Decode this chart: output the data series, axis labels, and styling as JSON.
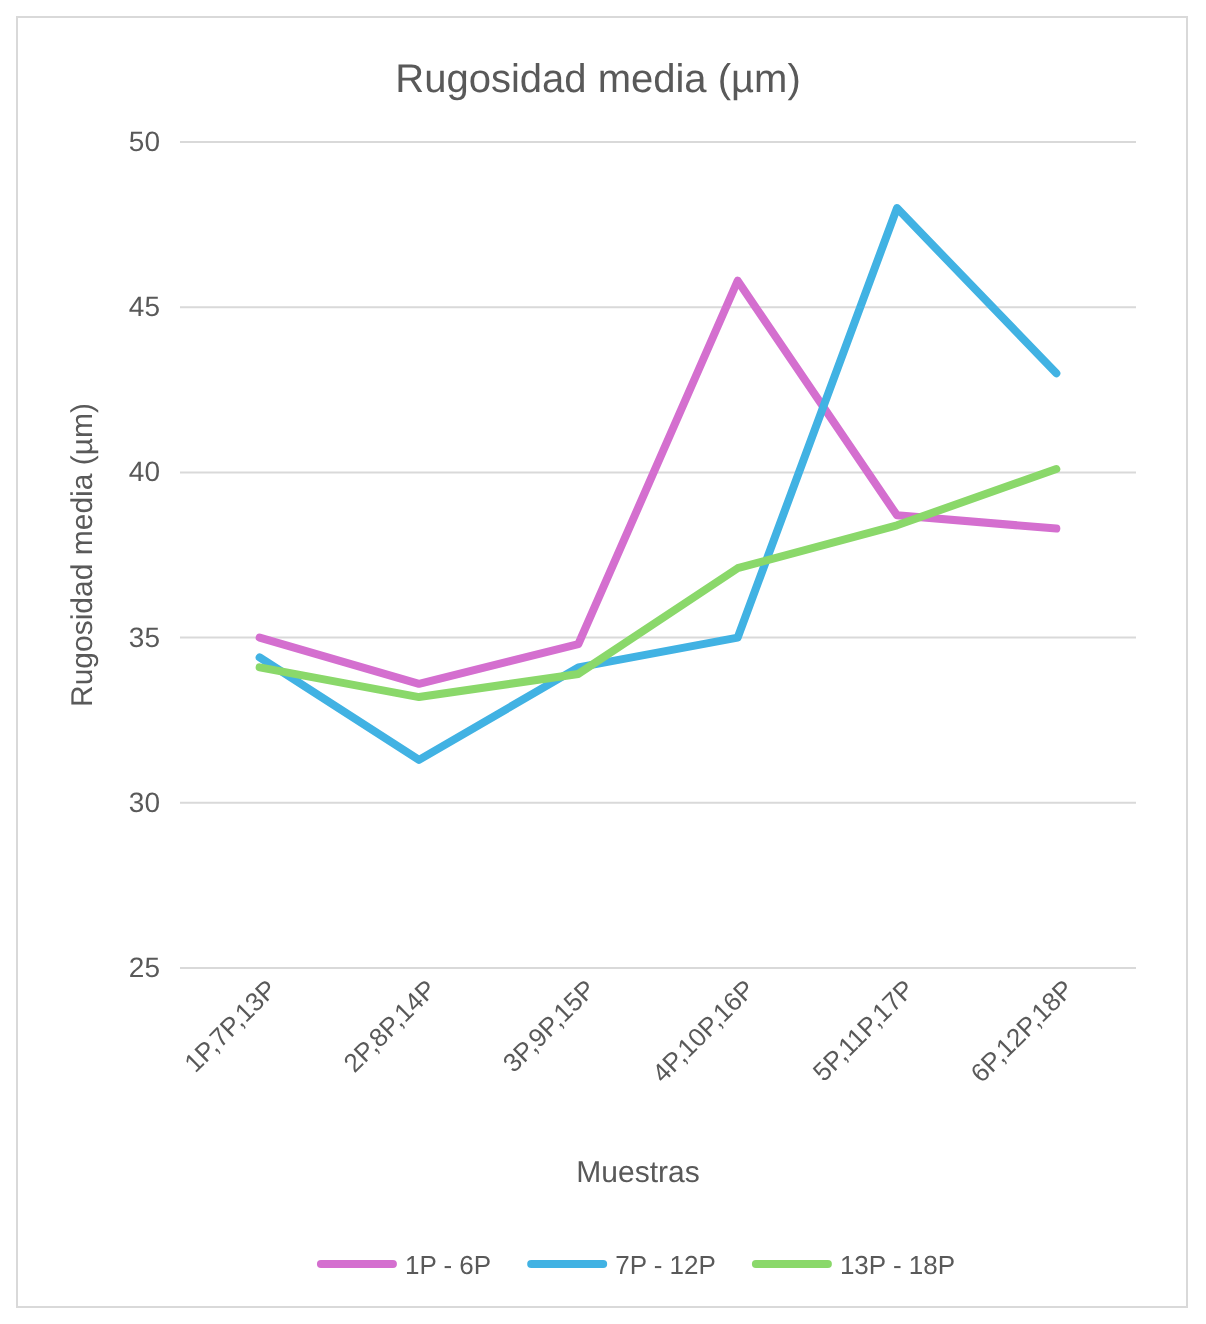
{
  "chart_data": {
    "type": "line",
    "title": "Rugosidad media (µm)",
    "xlabel": "Muestras",
    "ylabel": "Rugosidad media (µm)",
    "categories": [
      "1P,7P,13P",
      "2P,8P,14P",
      "3P,9P,15P",
      "4P,10P,16P",
      "5P,11P,17P",
      "6P,12P,18P"
    ],
    "series": [
      {
        "name": "1P - 6P",
        "color": "#d46fcf",
        "values": [
          35.0,
          33.6,
          34.8,
          45.8,
          38.7,
          38.3
        ]
      },
      {
        "name": "7P - 12P",
        "color": "#41b2e3",
        "values": [
          34.4,
          31.3,
          34.1,
          35.0,
          48.0,
          43.0
        ]
      },
      {
        "name": "13P - 18P",
        "color": "#8ad86a",
        "values": [
          34.1,
          33.2,
          33.9,
          37.1,
          38.4,
          40.1
        ]
      }
    ],
    "ylim": [
      25,
      50
    ],
    "yticks": [
      25,
      30,
      35,
      40,
      45,
      50
    ],
    "grid": "y",
    "legend": "bottom",
    "marker": "none",
    "line_style": "solid"
  }
}
